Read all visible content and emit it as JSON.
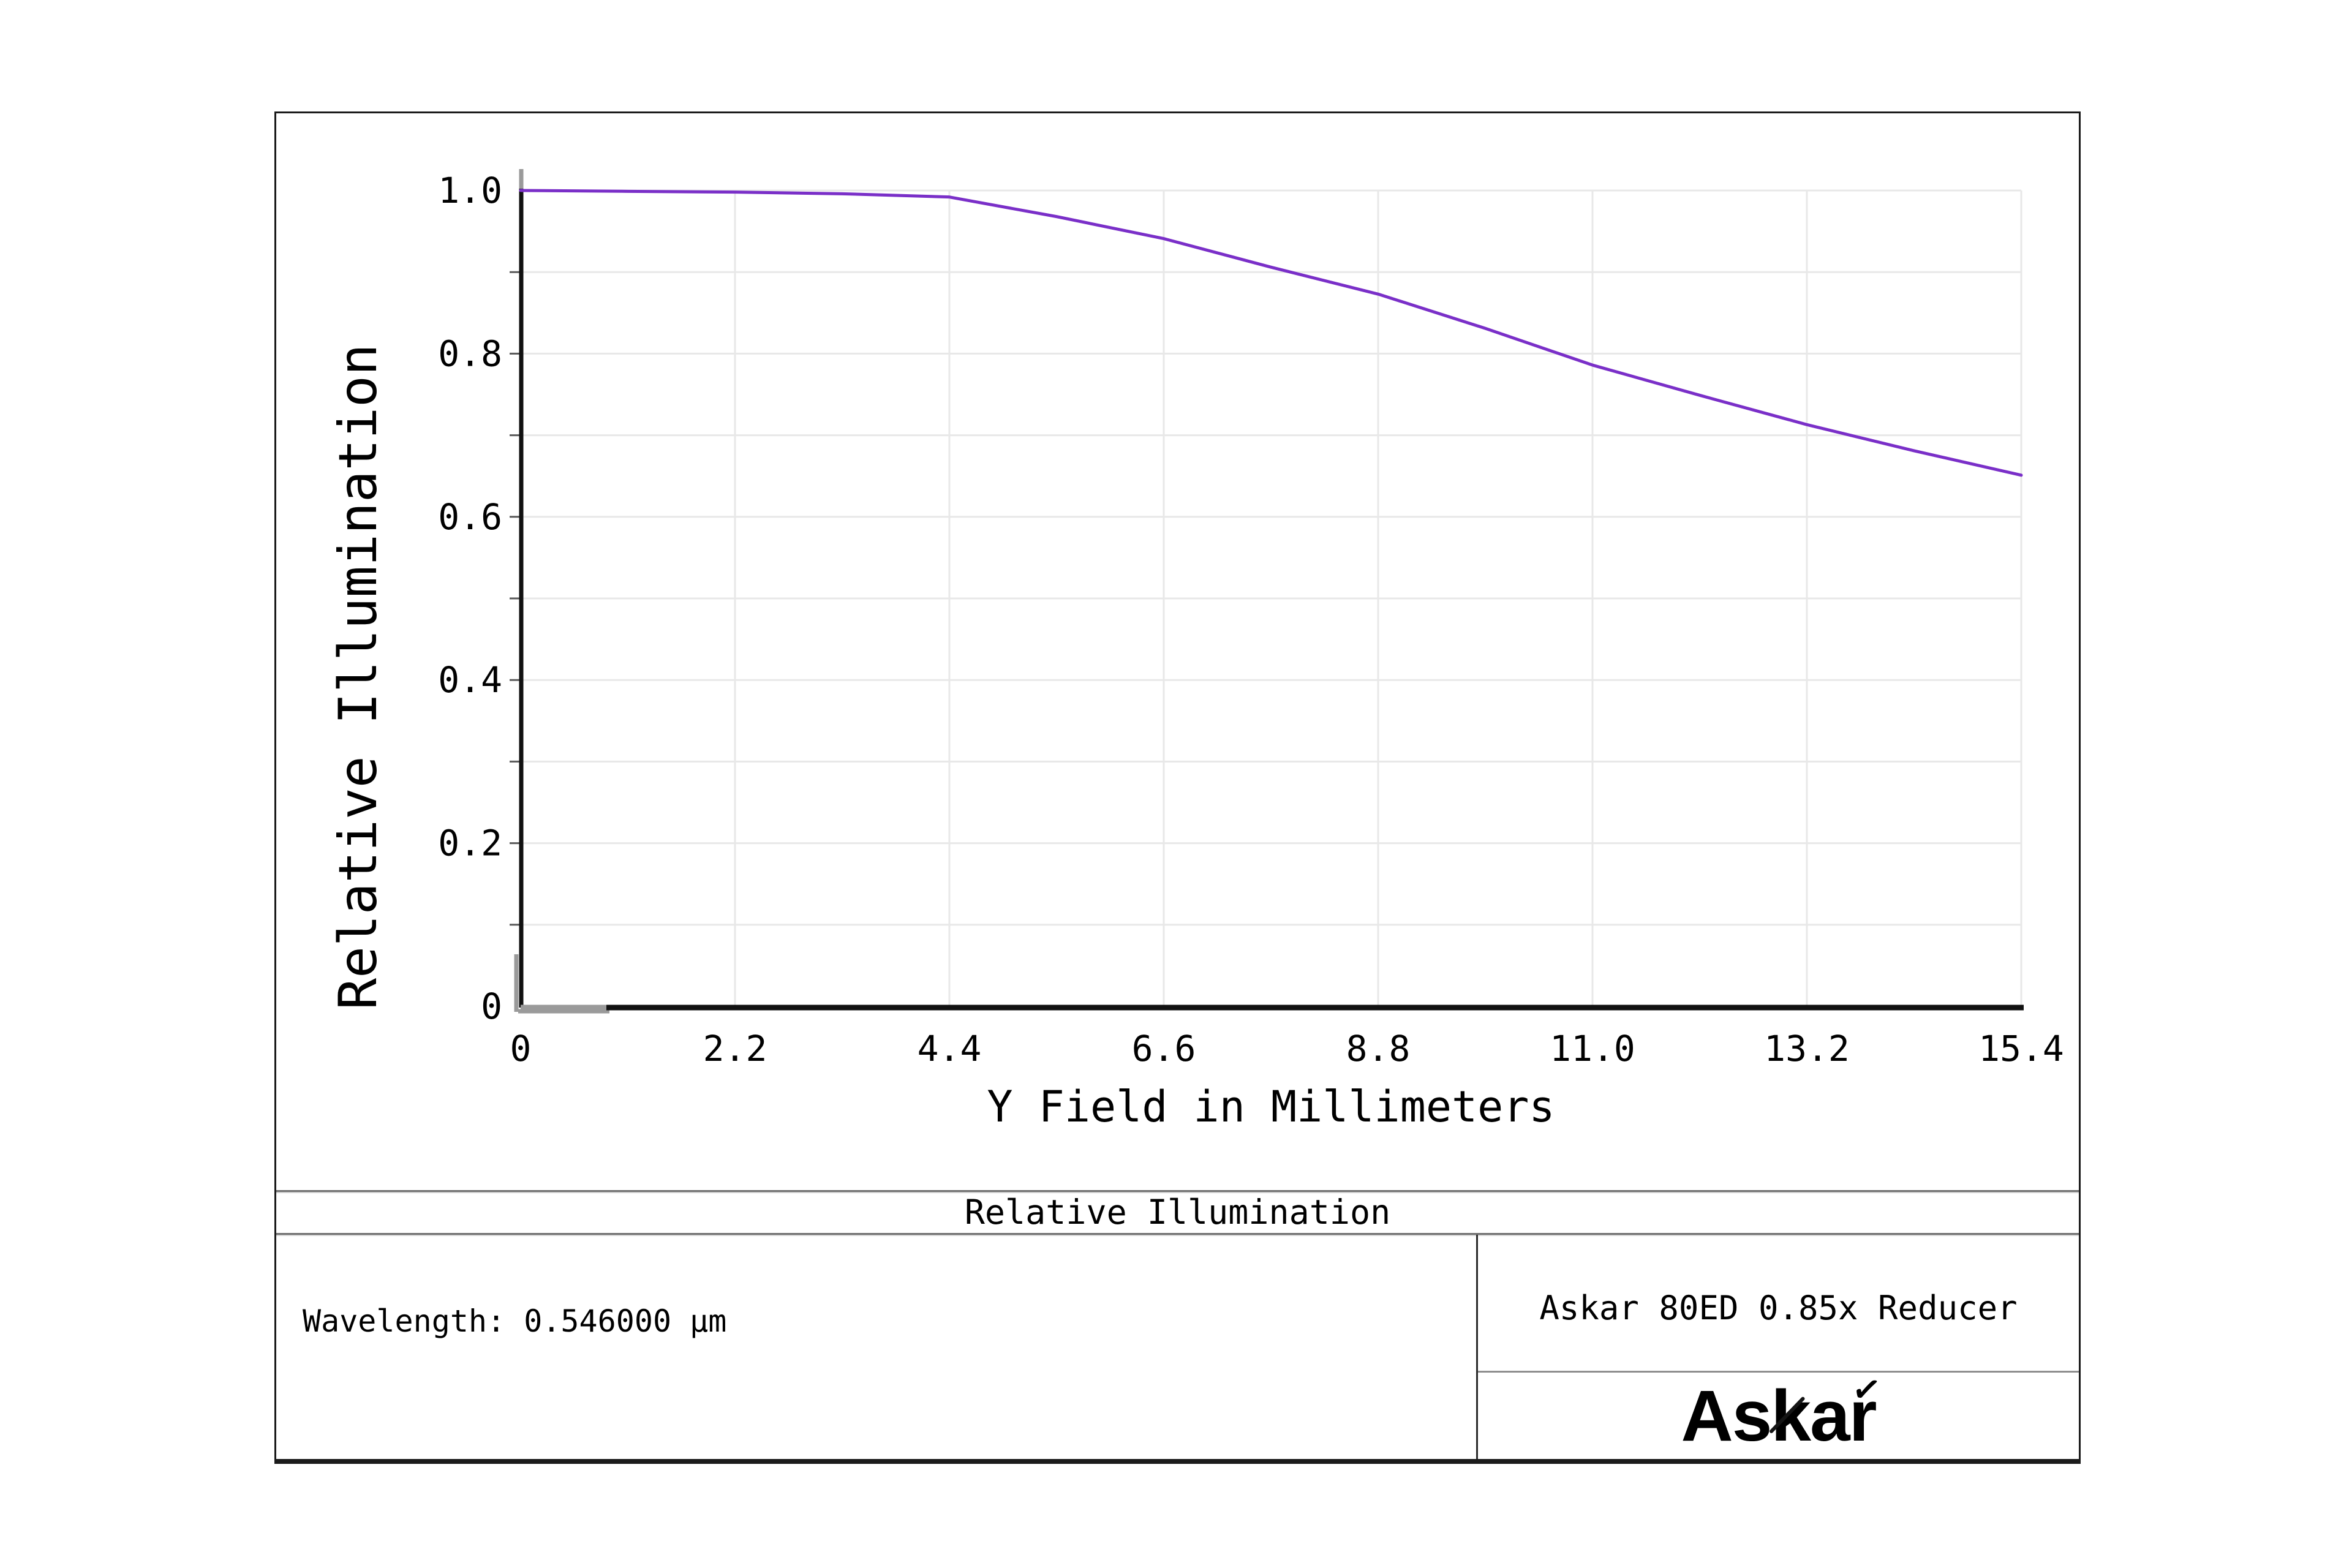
{
  "title_bar": {
    "label": "Relative Illumination"
  },
  "info_panel": {
    "wavelength": "Wavelength: 0.546000 µm"
  },
  "project_panel": {
    "name": "Askar 80ED 0.85x Reducer"
  },
  "logo_panel": {
    "text": "Askar",
    "accent": "✓"
  },
  "chart_data": {
    "type": "line",
    "title": "Relative Illumination",
    "xlabel": "Y Field in Millimeters",
    "ylabel": "Relative Illumination",
    "xlim": [
      0,
      15.4
    ],
    "ylim": [
      0,
      1.0
    ],
    "x_ticks": {
      "values": [
        0,
        2.2,
        4.4,
        6.6,
        8.8,
        11.0,
        13.2,
        15.4
      ],
      "labels": [
        "0",
        "2.2",
        "4.4",
        "6.6",
        "8.8",
        "11.0",
        "13.2",
        "15.4"
      ]
    },
    "y_ticks": {
      "values": [
        0,
        0.2,
        0.4,
        0.6,
        0.8,
        1.0
      ],
      "labels": [
        "0",
        "0.2",
        "0.4",
        "0.6",
        "0.8",
        "1.0"
      ]
    },
    "grid": {
      "on": true,
      "x_step": 2.2,
      "y_step": 0.1,
      "color": "#e8e8e8"
    },
    "legend": {
      "visible": false
    },
    "series": [
      {
        "name": "Relative Illumination",
        "color": "#7a2fc8",
        "x": [
          0,
          1.1,
          2.2,
          3.3,
          4.4,
          5.5,
          6.6,
          7.7,
          8.8,
          9.9,
          11.0,
          12.1,
          13.2,
          14.3,
          15.4
        ],
        "y": [
          1.0,
          0.999,
          0.998,
          0.996,
          0.992,
          0.968,
          0.941,
          0.906,
          0.873,
          0.831,
          0.786,
          0.749,
          0.713,
          0.681,
          0.651
        ]
      }
    ],
    "axis_color": "#111111",
    "axis_shadow_color": "#9a9a9a"
  }
}
